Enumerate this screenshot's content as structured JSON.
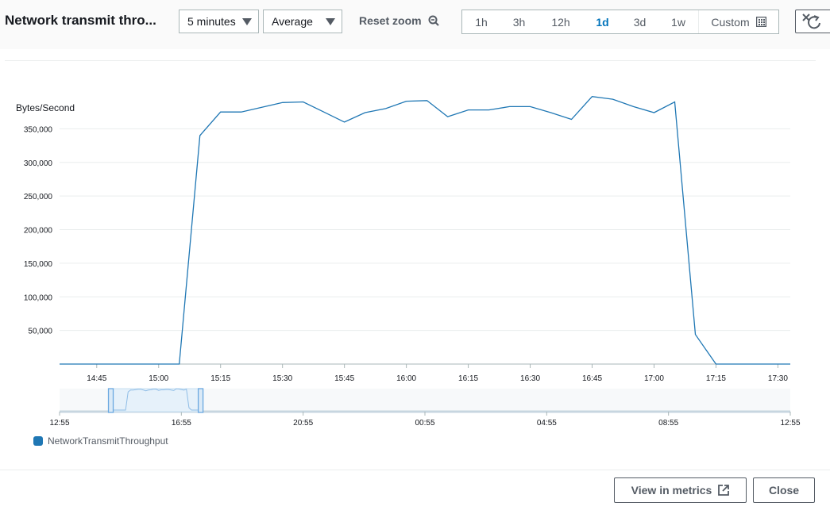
{
  "header": {
    "title": "Network transmit thro...",
    "period": "5 minutes",
    "statistic": "Average",
    "reset_zoom": "Reset zoom",
    "ranges": [
      "1h",
      "3h",
      "12h",
      "1d",
      "3d",
      "1w"
    ],
    "active_range": "1d",
    "custom": "Custom"
  },
  "footer": {
    "view_in_metrics": "View in metrics",
    "close": "Close"
  },
  "chart_data": {
    "type": "line",
    "ylabel": "Bytes/Second",
    "yticks": [
      "50,000",
      "100,000",
      "150,000",
      "200,000",
      "250,000",
      "300,000",
      "350,000"
    ],
    "ytick_values": [
      50000,
      100000,
      150000,
      200000,
      250000,
      300000,
      350000
    ],
    "ylim": [
      0,
      400000
    ],
    "xticks": [
      "14:45",
      "15:00",
      "15:15",
      "15:30",
      "15:45",
      "16:00",
      "16:15",
      "16:30",
      "16:45",
      "17:00",
      "17:15",
      "17:30"
    ],
    "xlim": [
      "14:36",
      "17:33"
    ],
    "series": [
      {
        "name": "NetworkTransmitThroughput",
        "color": "#1f77b4",
        "x": [
          "14:36",
          "14:40",
          "14:45",
          "14:50",
          "14:55",
          "15:00",
          "15:05",
          "15:10",
          "15:15",
          "15:20",
          "15:25",
          "15:30",
          "15:35",
          "15:40",
          "15:45",
          "15:50",
          "15:55",
          "16:00",
          "16:05",
          "16:10",
          "16:15",
          "16:20",
          "16:25",
          "16:30",
          "16:35",
          "16:40",
          "16:45",
          "16:50",
          "16:55",
          "17:00",
          "17:05",
          "17:10",
          "17:15",
          "17:20",
          "17:25",
          "17:30",
          "17:33"
        ],
        "values": [
          0,
          0,
          0,
          0,
          0,
          0,
          0,
          340000,
          375000,
          375000,
          382000,
          389000,
          390000,
          375000,
          360000,
          374000,
          380000,
          391000,
          392000,
          368000,
          378000,
          378000,
          383000,
          383000,
          374000,
          364000,
          398000,
          394000,
          383000,
          374000,
          390000,
          44000,
          0,
          0,
          0,
          0,
          0
        ]
      }
    ],
    "legend": "bottom-left",
    "navigator": {
      "xticks": [
        "12:55",
        "16:55",
        "20:55",
        "00:55",
        "04:55",
        "08:55",
        "12:55"
      ],
      "selection": [
        "14:36",
        "17:33"
      ]
    }
  }
}
